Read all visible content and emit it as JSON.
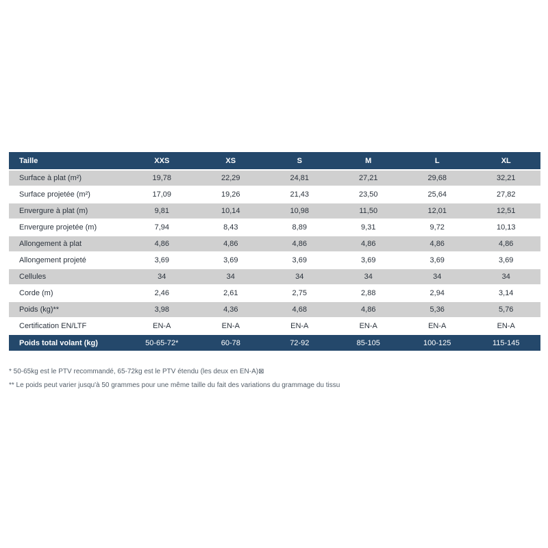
{
  "colors": {
    "navy": "#24486B",
    "row_gray": "#D0D0D0",
    "row_white": "#FFFFFF",
    "body_text": "#2B333D",
    "footnote_text": "#535E69",
    "page_bg": "#FFFFFF"
  },
  "table": {
    "header": {
      "label": "Taille",
      "columns": [
        "XXS",
        "XS",
        "S",
        "M",
        "L",
        "XL"
      ]
    },
    "rows": [
      {
        "label": "Surface à plat (m²)",
        "values": [
          "19,78",
          "22,29",
          "24,81",
          "27,21",
          "29,68",
          "32,21"
        ]
      },
      {
        "label": "Surface projetée (m²)",
        "values": [
          "17,09",
          "19,26",
          "21,43",
          "23,50",
          "25,64",
          "27,82"
        ]
      },
      {
        "label": "Envergure à plat (m)",
        "values": [
          "9,81",
          "10,14",
          "10,98",
          "11,50",
          "12,01",
          "12,51"
        ]
      },
      {
        "label": "Envergure projetée (m)",
        "values": [
          "7,94",
          "8,43",
          "8,89",
          "9,31",
          "9,72",
          "10,13"
        ]
      },
      {
        "label": "Allongement à plat",
        "values": [
          "4,86",
          "4,86",
          "4,86",
          "4,86",
          "4,86",
          "4,86"
        ]
      },
      {
        "label": "Allongement projeté",
        "values": [
          "3,69",
          "3,69",
          "3,69",
          "3,69",
          "3,69",
          "3,69"
        ]
      },
      {
        "label": "Cellules",
        "values": [
          "34",
          "34",
          "34",
          "34",
          "34",
          "34"
        ]
      },
      {
        "label": "Corde (m)",
        "values": [
          "2,46",
          "2,61",
          "2,75",
          "2,88",
          "2,94",
          "3,14"
        ]
      },
      {
        "label": "Poids (kg)**",
        "values": [
          "3,98",
          "4,36",
          "4,68",
          "4,86",
          "5,36",
          "5,76"
        ]
      },
      {
        "label": "Certification EN/LTF",
        "values": [
          "EN-A",
          "EN-A",
          "EN-A",
          "EN-A",
          "EN-A",
          "EN-A"
        ]
      }
    ],
    "footer": {
      "label": "Poids total volant (kg)",
      "values": [
        "50-65-72*",
        "60-78",
        "72-92",
        "85-105",
        "100-125",
        "115-145"
      ]
    }
  },
  "footnotes": [
    "* 50-65kg est le PTV recommandé, 65-72kg est le PTV étendu (les deux en EN-A)⊠",
    "** Le poids peut varier jusqu'à 50 grammes pour une même taille du fait des variations du grammage du tissu"
  ]
}
